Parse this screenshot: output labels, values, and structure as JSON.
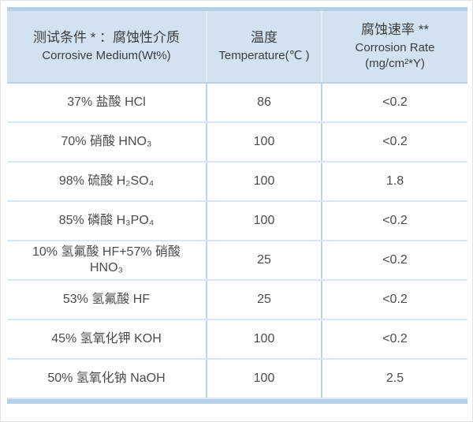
{
  "chart_data": {
    "type": "table",
    "columns": [
      {
        "zh": "测试条件 * ：腐蚀性介质",
        "en": "Corrosive Medium(Wt%)"
      },
      {
        "zh": "温度",
        "en": "Temperature(℃ )"
      },
      {
        "zh": "腐蚀速率 **",
        "en": "Corrosion Rate\n(mg/cm²*Y)"
      }
    ],
    "rows": [
      {
        "medium": "37% 盐酸 HCl",
        "temp": "86",
        "rate": "<0.2"
      },
      {
        "medium": "70% 硝酸 HNO₃",
        "temp": "100",
        "rate": "<0.2"
      },
      {
        "medium": "98% 硫酸 H₂SO₄",
        "temp": "100",
        "rate": "1.8"
      },
      {
        "medium": "85% 磷酸 H₃PO₄",
        "temp": "100",
        "rate": "<0.2"
      },
      {
        "medium": "10% 氢氟酸 HF+57% 硝酸\nHNO₃",
        "temp": "25",
        "rate": "<0.2"
      },
      {
        "medium": "53% 氢氟酸 HF",
        "temp": "25",
        "rate": "<0.2"
      },
      {
        "medium": "45% 氢氧化钾 KOH",
        "temp": "100",
        "rate": "<0.2"
      },
      {
        "medium": "50% 氢氧化钠 NaOH",
        "temp": "100",
        "rate": "2.5"
      }
    ]
  },
  "colors": {
    "accent_bar": "#b5cfe6",
    "header_bg": "#d3e2f1",
    "grid_vertical": "#b9d5ef",
    "grid_horizontal": "#d8e6f5",
    "text": "#4c4c4c"
  }
}
